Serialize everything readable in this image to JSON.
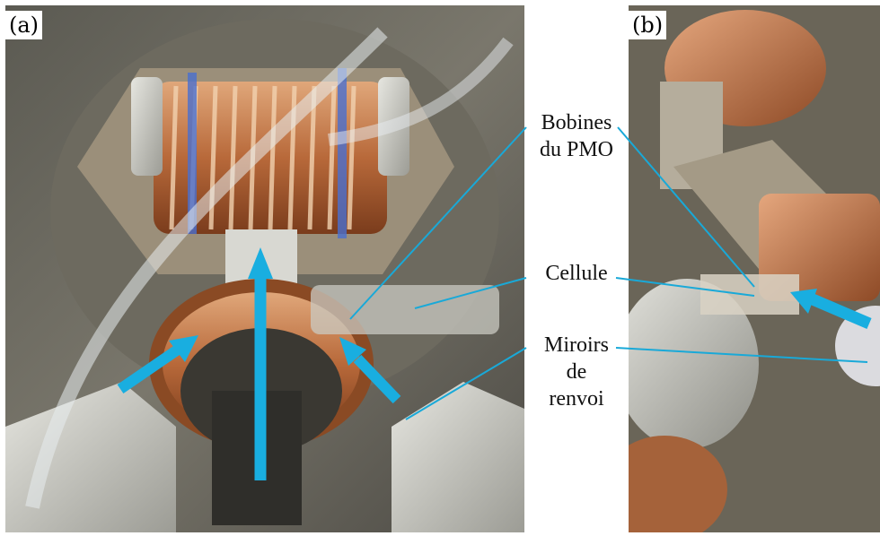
{
  "panels": {
    "a": {
      "label": "(a)"
    },
    "b": {
      "label": "(b)"
    }
  },
  "captions": {
    "bobines_line1": "Bobines",
    "bobines_line2": "du PMO",
    "cellule": "Cellule",
    "miroirs_line1": "Miroirs",
    "miroirs_line2": "de",
    "miroirs_line3": "renvoi"
  },
  "colors": {
    "annotation_line": "#19a9d8",
    "beam_arrow": "#19aee0",
    "copper": "#b8693a",
    "metal": "#b9b9b2"
  }
}
